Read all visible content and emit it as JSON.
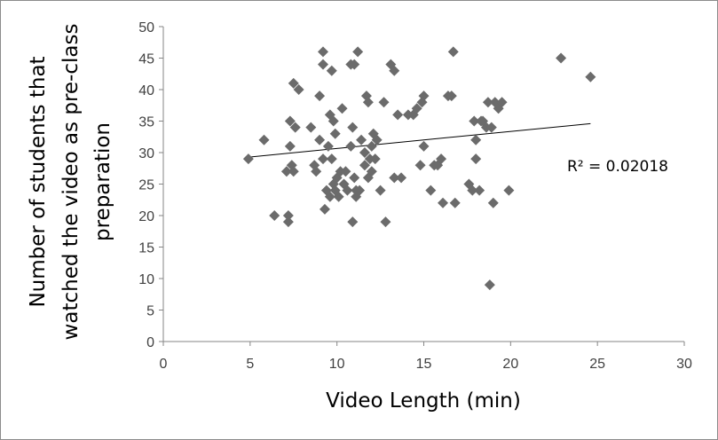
{
  "chart_data": {
    "type": "scatter",
    "title": "",
    "xlabel": "Video Length (min)",
    "ylabel_lines": [
      "Number of students that",
      "watched the video as pre-class",
      "preparation"
    ],
    "xlim": [
      0,
      30
    ],
    "ylim": [
      0,
      50
    ],
    "xticks": [
      0,
      5,
      10,
      15,
      20,
      25,
      30
    ],
    "yticks": [
      0,
      5,
      10,
      15,
      20,
      25,
      30,
      35,
      40,
      45,
      50
    ],
    "grid": false,
    "marker_color": "#6b6b6b",
    "marker": "diamond",
    "points": [
      [
        4.9,
        29
      ],
      [
        5.8,
        32
      ],
      [
        6.4,
        20
      ],
      [
        7.1,
        27
      ],
      [
        7.2,
        19
      ],
      [
        7.2,
        20
      ],
      [
        7.3,
        31
      ],
      [
        7.3,
        35
      ],
      [
        7.4,
        28
      ],
      [
        7.5,
        27
      ],
      [
        7.5,
        41
      ],
      [
        7.6,
        34
      ],
      [
        7.8,
        40
      ],
      [
        8.5,
        34
      ],
      [
        8.7,
        28
      ],
      [
        8.8,
        27
      ],
      [
        9.0,
        32
      ],
      [
        9.0,
        39
      ],
      [
        9.2,
        46
      ],
      [
        9.2,
        44
      ],
      [
        9.2,
        29
      ],
      [
        9.3,
        21
      ],
      [
        9.4,
        24
      ],
      [
        9.5,
        31
      ],
      [
        9.6,
        36
      ],
      [
        9.6,
        23
      ],
      [
        9.7,
        43
      ],
      [
        9.7,
        29
      ],
      [
        9.8,
        35
      ],
      [
        9.8,
        25
      ],
      [
        9.9,
        33
      ],
      [
        9.9,
        24
      ],
      [
        10.0,
        26
      ],
      [
        10.1,
        23
      ],
      [
        10.2,
        27
      ],
      [
        10.3,
        37
      ],
      [
        10.4,
        25
      ],
      [
        10.5,
        27
      ],
      [
        10.6,
        24
      ],
      [
        10.8,
        44
      ],
      [
        10.8,
        31
      ],
      [
        10.9,
        34
      ],
      [
        10.9,
        19
      ],
      [
        11.0,
        44
      ],
      [
        11.0,
        26
      ],
      [
        11.1,
        24
      ],
      [
        11.1,
        23
      ],
      [
        11.2,
        46
      ],
      [
        11.3,
        24
      ],
      [
        11.4,
        32
      ],
      [
        11.6,
        28
      ],
      [
        11.6,
        30
      ],
      [
        11.7,
        39
      ],
      [
        11.8,
        38
      ],
      [
        11.8,
        26
      ],
      [
        11.9,
        29
      ],
      [
        12.0,
        27
      ],
      [
        12.0,
        31
      ],
      [
        12.1,
        33
      ],
      [
        12.2,
        29
      ],
      [
        12.3,
        32
      ],
      [
        12.5,
        24
      ],
      [
        12.7,
        38
      ],
      [
        12.8,
        19
      ],
      [
        13.1,
        44
      ],
      [
        13.3,
        43
      ],
      [
        13.3,
        26
      ],
      [
        13.5,
        36
      ],
      [
        13.7,
        26
      ],
      [
        14.1,
        36
      ],
      [
        14.4,
        36
      ],
      [
        14.6,
        37
      ],
      [
        14.8,
        28
      ],
      [
        14.9,
        38
      ],
      [
        15.0,
        39
      ],
      [
        15.0,
        31
      ],
      [
        15.4,
        24
      ],
      [
        15.6,
        28
      ],
      [
        15.8,
        28
      ],
      [
        16.0,
        29
      ],
      [
        16.1,
        22
      ],
      [
        16.4,
        39
      ],
      [
        16.6,
        39
      ],
      [
        16.7,
        46
      ],
      [
        16.8,
        22
      ],
      [
        17.6,
        25
      ],
      [
        17.8,
        24
      ],
      [
        17.9,
        35
      ],
      [
        18.0,
        32
      ],
      [
        18.0,
        29
      ],
      [
        18.2,
        24
      ],
      [
        18.3,
        35
      ],
      [
        18.4,
        35
      ],
      [
        18.6,
        34
      ],
      [
        18.7,
        38
      ],
      [
        18.8,
        9
      ],
      [
        18.9,
        34
      ],
      [
        19.0,
        22
      ],
      [
        19.1,
        38
      ],
      [
        19.3,
        37
      ],
      [
        19.5,
        38
      ],
      [
        19.9,
        24
      ],
      [
        22.9,
        45
      ],
      [
        24.6,
        42
      ]
    ],
    "trendline": {
      "x": [
        5.0,
        24.6
      ],
      "y": [
        29.3,
        34.6
      ]
    },
    "annotation": "R² = 0.02018"
  }
}
